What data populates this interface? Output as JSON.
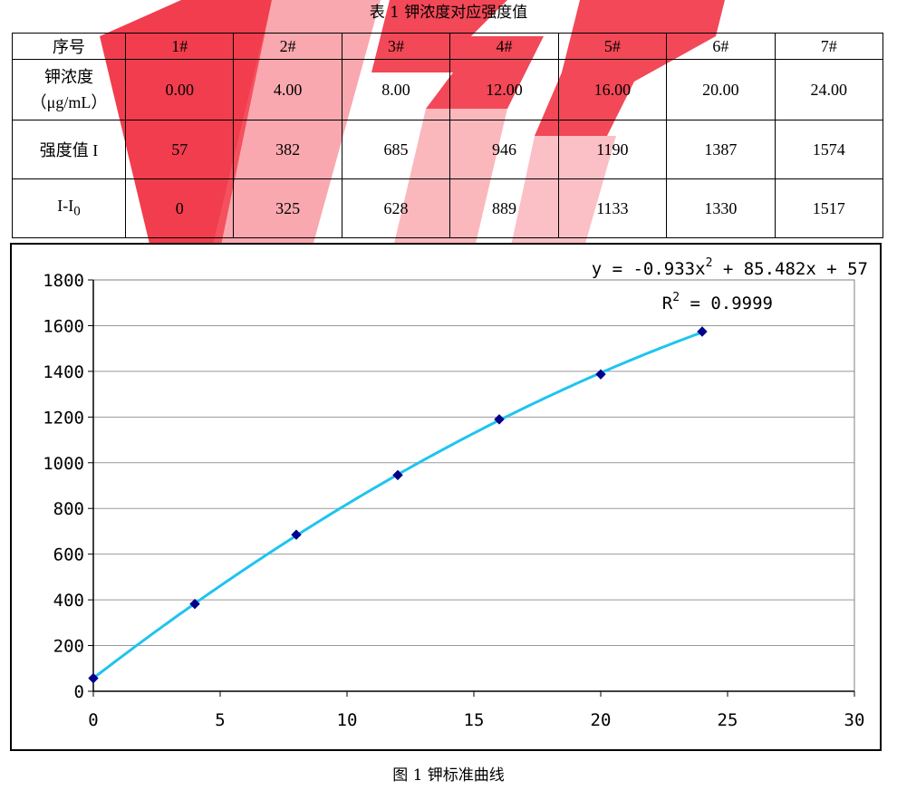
{
  "table_caption": "表 1 钾浓度对应强度值",
  "figure_caption": "图 1 钾标准曲线",
  "table": {
    "header": [
      "序号",
      "1#",
      "2#",
      "3#",
      "4#",
      "5#",
      "6#",
      "7#"
    ],
    "rows": [
      {
        "label": "钾浓度\n（μg/mL）",
        "values": [
          "0.00",
          "4.00",
          "8.00",
          "12.00",
          "16.00",
          "20.00",
          "24.00"
        ]
      },
      {
        "label": "强度值 I",
        "values": [
          "57",
          "382",
          "685",
          "946",
          "1190",
          "1387",
          "1574"
        ]
      },
      {
        "label_main": "I-I",
        "label_sub": "0",
        "values": [
          "0",
          "325",
          "628",
          "889",
          "1133",
          "1330",
          "1517"
        ]
      }
    ]
  },
  "chart_data": {
    "type": "scatter",
    "x": [
      0,
      4,
      8,
      12,
      16,
      20,
      24
    ],
    "y": [
      57,
      382,
      685,
      946,
      1190,
      1387,
      1574
    ],
    "xlim": [
      0,
      30
    ],
    "ylim": [
      0,
      1800
    ],
    "xticks": [
      0,
      5,
      10,
      15,
      20,
      25,
      30
    ],
    "yticks": [
      0,
      200,
      400,
      600,
      800,
      1000,
      1200,
      1400,
      1600,
      1800
    ],
    "grid": "horizontal",
    "trendline": {
      "type": "polynomial",
      "order": 2,
      "coefficients": [
        -0.933,
        85.482,
        57
      ]
    },
    "equation_main": "y = -0.933x",
    "equation_sup": "2",
    "equation_tail": " + 85.482x + 57",
    "r2_main": "R",
    "r2_sup": "2",
    "r2_tail": " = 0.9999",
    "colors": {
      "trendline": "#1fc4ef",
      "marker": "#00008b",
      "grid": "#999999"
    }
  }
}
